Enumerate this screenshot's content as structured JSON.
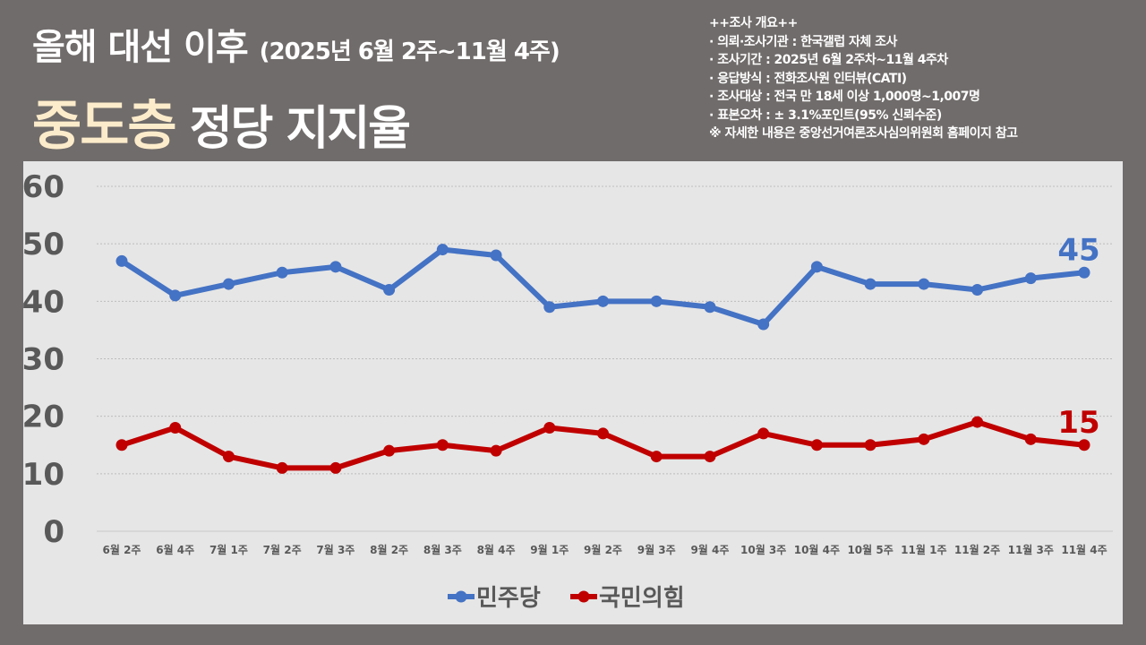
{
  "header": {
    "title_line1": "올해 대선 이후",
    "title_line1_period": "(2025년 6월 2주~11월 4주)",
    "title_highlight": "중도층",
    "title_rest": "정당 지지율"
  },
  "survey_info": {
    "heading": "++조사 개요++",
    "lines": [
      "· 의뢰·조사기관 : 한국갤럽 자체 조사",
      "· 조사기간 : 2025년 6월 2주차~11월 4주차",
      "· 응답방식 : 전화조사원 인터뷰(CATI)",
      "· 조사대상 : 전국 만 18세 이상 1,000명~1,007명",
      "· 표본오차 :  ± 3.1%포인트(95% 신뢰수준)"
    ],
    "note": "※ 자세한 내용은 중앙선거여론조사심의위원회 홈페이지 참고"
  },
  "colors": {
    "background": "#706c6b",
    "panel": "#e6e6e6",
    "democratic": "#4472c4",
    "ppp": "#c00000",
    "highlight_text": "#fdeccb",
    "axis_text": "#595959"
  },
  "chart_data": {
    "type": "line",
    "title": "올해 대선 이후 (2025년 6월 2주~11월 4주) 중도층 정당 지지율",
    "xlabel": "",
    "ylabel": "",
    "ylim": [
      0,
      60
    ],
    "yticks": [
      0,
      10,
      20,
      30,
      40,
      50,
      60
    ],
    "grid": true,
    "legend_position": "bottom",
    "categories": [
      "6월 2주",
      "6월 4주",
      "7월 1주",
      "7월 2주",
      "7월 3주",
      "8월 2주",
      "8월 3주",
      "8월 4주",
      "9월 1주",
      "9월 2주",
      "9월 3주",
      "9월 4주",
      "10월 3주",
      "10월 4주",
      "10월 5주",
      "11월 1주",
      "11월 2주",
      "11월 3주",
      "11월 4주"
    ],
    "series": [
      {
        "name": "민주당",
        "color": "#4472c4",
        "values": [
          47,
          41,
          43,
          45,
          46,
          42,
          49,
          48,
          39,
          40,
          40,
          39,
          36,
          46,
          43,
          43,
          42,
          44,
          45
        ],
        "end_label": "45"
      },
      {
        "name": "국민의힘",
        "color": "#c00000",
        "values": [
          15,
          18,
          13,
          11,
          11,
          14,
          15,
          14,
          18,
          17,
          13,
          13,
          17,
          15,
          15,
          16,
          19,
          16,
          15
        ],
        "end_label": "15"
      }
    ]
  }
}
